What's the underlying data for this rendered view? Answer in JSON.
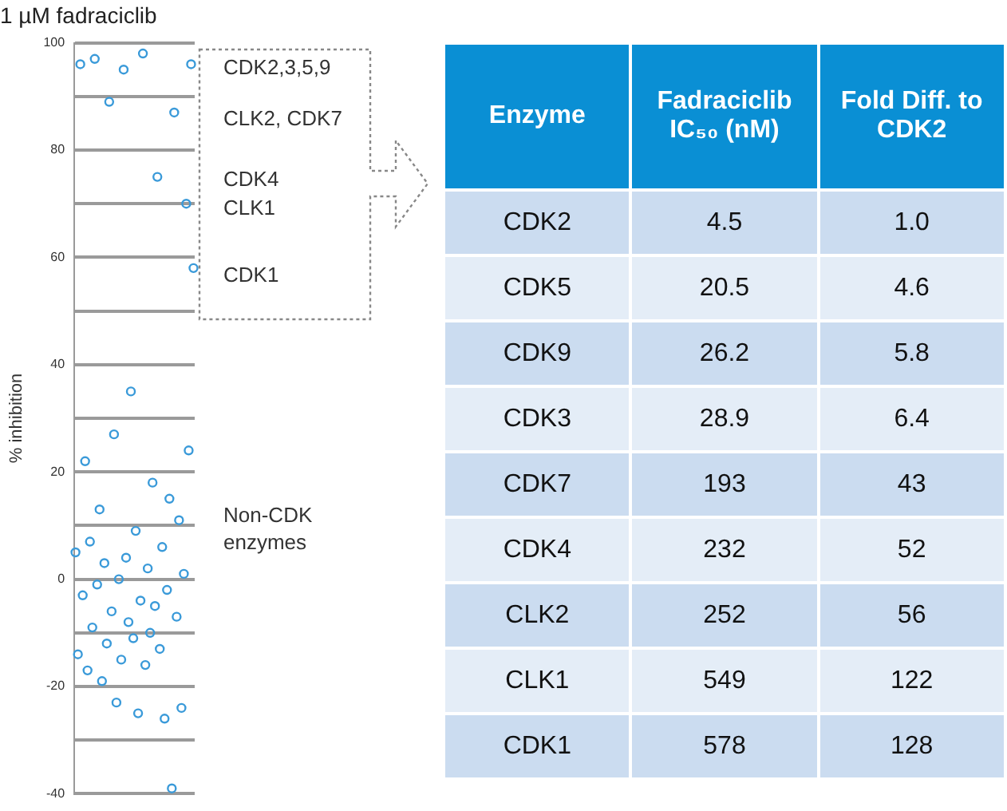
{
  "chart_data": [
    {
      "type": "scatter",
      "title": "1 µM fadraciclib",
      "ylabel": "% inhibition",
      "marker": "circle",
      "grid": "y",
      "tick_labels": "y",
      "categories": [
        null,
        null,
        null,
        null,
        null,
        null,
        null,
        null,
        null,
        null,
        null,
        null,
        null,
        null,
        null,
        null,
        null,
        null,
        null,
        null,
        null,
        null,
        null,
        null,
        null,
        null,
        null,
        null,
        null,
        null,
        null,
        null,
        null,
        null,
        null,
        null,
        null,
        null,
        null,
        null,
        null,
        null,
        null,
        null,
        null,
        null,
        null,
        null,
        null,
        null
      ],
      "ylim": [
        -40,
        100
      ],
      "yticks": [
        100,
        {
          "value": 90,
          "label": null
        },
        80,
        {
          "value": 70,
          "label": null
        },
        60,
        {
          "value": 50,
          "label": null
        },
        40,
        {
          "value": 30,
          "label": null
        },
        20,
        {
          "value": 10,
          "label": null
        },
        0,
        {
          "value": -10,
          "label": null
        },
        -20,
        {
          "value": -30,
          "label": null
        },
        -40
      ],
      "series": [
        {
          "color": "#3a9ad9",
          "values": [
            5,
            -14,
            96,
            -3,
            22,
            -17,
            7,
            -9,
            97,
            -1,
            13,
            -19,
            3,
            -12,
            89,
            -6,
            27,
            -23,
            0,
            -15,
            95,
            4,
            -8,
            35,
            -11,
            9,
            -25,
            -4,
            98,
            -16,
            2,
            -10,
            18,
            -5,
            75,
            -13,
            6,
            -26,
            -2,
            15,
            -39,
            87,
            -7,
            11,
            -24,
            1,
            70,
            24,
            96,
            58
          ]
        }
      ],
      "annotations": [
        "CDK2,3,5,9",
        "CLK2, CDK7",
        "CDK4",
        "CLK1",
        "CDK1",
        "Non-CDK enzymes"
      ]
    },
    {
      "type": "other",
      "xlabel": "Enzyme",
      "data_labels": true,
      "categories": [
        "CDK2",
        "CDK5",
        "CDK9",
        "CDK3",
        "CDK7",
        "CDK4",
        "CLK2",
        "CLK1",
        "CDK1"
      ],
      "series": [
        {
          "name": "Fadraciclib IC₅₀ (nM)",
          "colors": [
            "#cbdcf0",
            "#e4edf7",
            "#cbdcf0",
            "#e4edf7",
            "#cbdcf0",
            "#e4edf7",
            "#cbdcf0",
            "#e4edf7",
            "#cbdcf0"
          ],
          "values": [
            4.5,
            20.5,
            26.2,
            28.9,
            193,
            232,
            252,
            549,
            578
          ]
        },
        {
          "name": "Fold Diff. to CDK2",
          "colors": [
            "#cbdcf0",
            "#e4edf7",
            "#cbdcf0",
            "#e4edf7",
            "#cbdcf0",
            "#e4edf7",
            "#cbdcf0",
            "#e4edf7",
            "#cbdcf0"
          ],
          "values": [
            1.0,
            4.6,
            5.8,
            6.4,
            43,
            52,
            56,
            122,
            128
          ],
          "value_labels": [
            "1.0",
            "4.6",
            "5.8",
            "6.4",
            "43",
            "52",
            "56",
            "122",
            "128"
          ]
        }
      ]
    }
  ]
}
